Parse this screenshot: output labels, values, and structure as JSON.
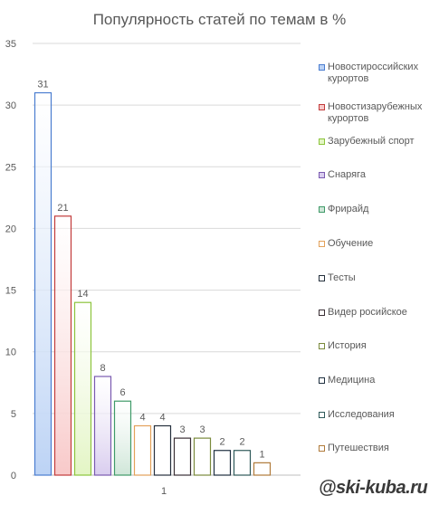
{
  "chart_data": {
    "type": "bar",
    "title": "Популярность  статей  по темам в %",
    "categories": [
      "1"
    ],
    "ylim": [
      0,
      35
    ],
    "yticks": [
      0,
      5,
      10,
      15,
      20,
      25,
      30,
      35
    ],
    "grid": true,
    "legend_position": "right",
    "series": [
      {
        "name": "Новостироссийских курортов",
        "values": [
          31
        ],
        "fill": "#bcd3f5",
        "stroke": "#4a7dd0"
      },
      {
        "name": "Новостизарубежных курортов",
        "values": [
          21
        ],
        "fill": "#f8c9c9",
        "stroke": "#c23b3b"
      },
      {
        "name": "Зарубежный спорт",
        "values": [
          14
        ],
        "fill": "#e3f5c4",
        "stroke": "#8cc43c"
      },
      {
        "name": "Снаряга",
        "values": [
          8
        ],
        "fill": "#d9cdef",
        "stroke": "#7a5ab0"
      },
      {
        "name": "Фрирайд",
        "values": [
          6
        ],
        "fill": "#cfe6d8",
        "stroke": "#3f9a68"
      },
      {
        "name": "Обучение",
        "values": [
          4
        ],
        "fill": "#ffffff",
        "stroke": "#e3a15a"
      },
      {
        "name": "Тесты",
        "values": [
          4
        ],
        "fill": "#ffffff",
        "stroke": "#25303d"
      },
      {
        "name": "Видер росийское",
        "values": [
          3
        ],
        "fill": "#ffffff",
        "stroke": "#3a2f35"
      },
      {
        "name": "История",
        "values": [
          3
        ],
        "fill": "#ffffff",
        "stroke": "#7a8a3c"
      },
      {
        "name": "Медицина",
        "values": [
          2
        ],
        "fill": "#ffffff",
        "stroke": "#1f3040"
      },
      {
        "name": "Исследования",
        "values": [
          2
        ],
        "fill": "#ffffff",
        "stroke": "#2f5a5a"
      },
      {
        "name": "Путешествия",
        "values": [
          1
        ],
        "fill": "#ffffff",
        "stroke": "#b07a3a"
      }
    ]
  },
  "legend": {
    "items": [
      {
        "lines": [
          "Новостироссийских",
          "курортов"
        ]
      },
      {
        "lines": [
          "Новостизарубежных",
          "курортов"
        ]
      },
      {
        "lines": [
          "Зарубежный спорт"
        ]
      },
      {
        "lines": [
          "Снаряга"
        ]
      },
      {
        "lines": [
          "Фрирайд"
        ]
      },
      {
        "lines": [
          "Обучение"
        ]
      },
      {
        "lines": [
          "Тесты"
        ]
      },
      {
        "lines": [
          "Видер росийское"
        ]
      },
      {
        "lines": [
          "История"
        ]
      },
      {
        "lines": [
          "Медицина"
        ]
      },
      {
        "lines": [
          "Исследования"
        ]
      },
      {
        "lines": [
          "Путешествия"
        ]
      }
    ]
  },
  "watermark": "@ski-kuba.ru"
}
